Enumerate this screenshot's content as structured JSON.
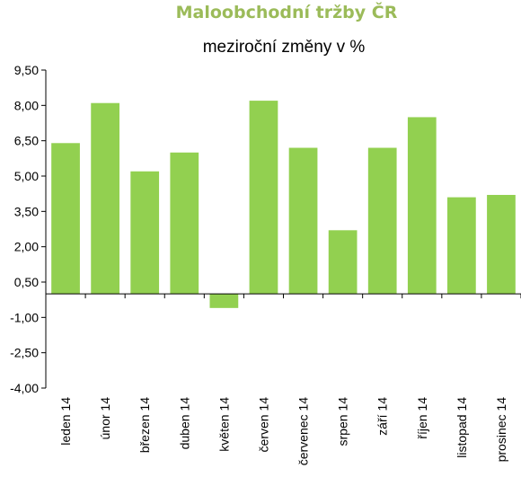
{
  "colors": {
    "title": "#9BBB59",
    "bar": "#92D050",
    "axis": "#000000"
  },
  "chart_data": {
    "type": "bar",
    "title": "Maloobchodní tržby ČR",
    "subtitle": "meziroční změny v %",
    "xlabel": "",
    "ylabel": "",
    "categories": [
      "leden 14",
      "únor 14",
      "březen 14",
      "duben 14",
      "květen 14",
      "červen 14",
      "červenec 14",
      "srpen 14",
      "září 14",
      "říjen 14",
      "listopad 14",
      "prosinec 14"
    ],
    "series": [
      {
        "values": [
          6.4,
          8.1,
          5.2,
          6.0,
          -0.6,
          8.2,
          6.2,
          2.7,
          6.2,
          7.5,
          4.1,
          4.2
        ]
      }
    ],
    "ylim": [
      -4.0,
      9.5
    ],
    "yticks": [
      9.5,
      8.0,
      6.5,
      5.0,
      3.5,
      2.0,
      0.5,
      -1.0,
      -2.5,
      -4.0
    ],
    "ytick_labels": [
      "9,50",
      "8,00",
      "6,50",
      "5,00",
      "3,50",
      "2,00",
      "0,50",
      "-1,00",
      "-2,50",
      "-4,00"
    ],
    "grid": false,
    "legend": "none"
  }
}
